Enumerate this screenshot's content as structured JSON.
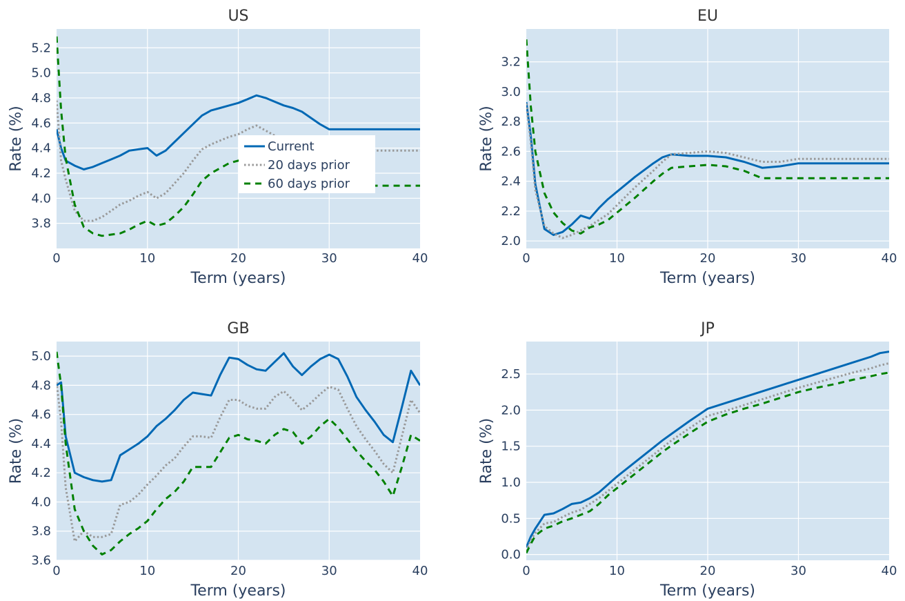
{
  "chart_data": [
    {
      "type": "line",
      "title": "US",
      "xlabel": "Term (years)",
      "ylabel": "Rate (%)",
      "xlim": [
        0,
        40
      ],
      "ylim": [
        3.6,
        5.35
      ],
      "xticks": [
        0,
        10,
        20,
        30,
        40
      ],
      "yticks": [
        3.8,
        4.0,
        4.2,
        4.4,
        4.6,
        4.8,
        5.0,
        5.2
      ],
      "ytick_format": 1,
      "grid": true,
      "legend": true,
      "legend_position": "center",
      "series": [
        {
          "name": "Current",
          "x": [
            0,
            0.5,
            1,
            2,
            3,
            4,
            5,
            6,
            7,
            8,
            9,
            10,
            11,
            12,
            13,
            14,
            15,
            16,
            17,
            18,
            19,
            20,
            21,
            22,
            23,
            24,
            25,
            26,
            27,
            28,
            29,
            30,
            35,
            40
          ],
          "y": [
            4.55,
            4.4,
            4.3,
            4.26,
            4.23,
            4.25,
            4.28,
            4.31,
            4.34,
            4.38,
            4.39,
            4.4,
            4.34,
            4.38,
            4.45,
            4.52,
            4.59,
            4.66,
            4.7,
            4.72,
            4.74,
            4.76,
            4.79,
            4.82,
            4.8,
            4.77,
            4.74,
            4.72,
            4.69,
            4.64,
            4.59,
            4.55,
            4.55,
            4.55
          ]
        },
        {
          "name": "20 days prior",
          "x": [
            0,
            0.5,
            1,
            2,
            3,
            4,
            5,
            6,
            7,
            8,
            9,
            10,
            11,
            12,
            13,
            14,
            15,
            16,
            17,
            18,
            19,
            20,
            21,
            22,
            23,
            24,
            25,
            26,
            27,
            28,
            30,
            35,
            40
          ],
          "y": [
            4.78,
            4.3,
            4.15,
            3.9,
            3.82,
            3.82,
            3.85,
            3.9,
            3.95,
            3.98,
            4.02,
            4.05,
            4.0,
            4.04,
            4.12,
            4.2,
            4.3,
            4.39,
            4.43,
            4.46,
            4.49,
            4.51,
            4.55,
            4.58,
            4.54,
            4.5,
            4.47,
            4.45,
            4.43,
            4.41,
            4.38,
            4.38,
            4.38
          ]
        },
        {
          "name": "60 days prior",
          "x": [
            0,
            0.5,
            1,
            2,
            3,
            4,
            5,
            6,
            7,
            8,
            9,
            10,
            11,
            12,
            13,
            14,
            15,
            16,
            17,
            18,
            19,
            20,
            21,
            22,
            23,
            24,
            25,
            26,
            27,
            28,
            30,
            35,
            40
          ],
          "y": [
            5.29,
            4.7,
            4.32,
            3.95,
            3.77,
            3.72,
            3.7,
            3.71,
            3.72,
            3.75,
            3.79,
            3.82,
            3.78,
            3.8,
            3.86,
            3.93,
            4.03,
            4.14,
            4.2,
            4.24,
            4.28,
            4.3,
            4.28,
            4.24,
            4.2,
            4.17,
            4.14,
            4.12,
            4.11,
            4.1,
            4.1,
            4.1,
            4.1
          ]
        }
      ]
    },
    {
      "type": "line",
      "title": "EU",
      "xlabel": "Term (years)",
      "ylabel": "Rate (%)",
      "xlim": [
        0,
        40
      ],
      "ylim": [
        1.95,
        3.42
      ],
      "xticks": [
        0,
        10,
        20,
        30,
        40
      ],
      "yticks": [
        2.0,
        2.2,
        2.4,
        2.6,
        2.8,
        3.0,
        3.2
      ],
      "ytick_format": 1,
      "grid": true,
      "legend": false,
      "series": [
        {
          "name": "Current",
          "x": [
            0,
            0.5,
            1,
            2,
            3,
            4,
            5,
            6,
            7,
            8,
            9,
            10,
            12,
            14,
            15,
            16,
            18,
            20,
            22,
            24,
            26,
            28,
            30,
            35,
            40
          ],
          "y": [
            2.93,
            2.7,
            2.38,
            2.08,
            2.04,
            2.06,
            2.11,
            2.17,
            2.15,
            2.22,
            2.28,
            2.33,
            2.43,
            2.52,
            2.56,
            2.58,
            2.57,
            2.57,
            2.56,
            2.53,
            2.49,
            2.5,
            2.52,
            2.52,
            2.52
          ]
        },
        {
          "name": "20 days prior",
          "x": [
            0,
            0.5,
            1,
            2,
            3,
            4,
            5,
            6,
            7,
            8,
            9,
            10,
            12,
            14,
            15,
            16,
            18,
            20,
            22,
            24,
            26,
            28,
            30,
            35,
            40
          ],
          "y": [
            2.92,
            2.66,
            2.34,
            2.1,
            2.05,
            2.02,
            2.04,
            2.07,
            2.1,
            2.14,
            2.18,
            2.24,
            2.36,
            2.47,
            2.53,
            2.58,
            2.59,
            2.6,
            2.59,
            2.56,
            2.53,
            2.53,
            2.55,
            2.55,
            2.55
          ]
        },
        {
          "name": "60 days prior",
          "x": [
            0,
            0.5,
            1,
            2,
            3,
            4,
            5,
            6,
            7,
            8,
            9,
            10,
            12,
            14,
            15,
            16,
            18,
            20,
            22,
            24,
            26,
            28,
            30,
            35,
            40
          ],
          "y": [
            3.35,
            2.9,
            2.6,
            2.32,
            2.19,
            2.12,
            2.07,
            2.05,
            2.09,
            2.11,
            2.14,
            2.19,
            2.29,
            2.4,
            2.45,
            2.49,
            2.5,
            2.51,
            2.5,
            2.47,
            2.42,
            2.42,
            2.42,
            2.42,
            2.42
          ]
        }
      ]
    },
    {
      "type": "line",
      "title": "GB",
      "xlabel": "Term (years)",
      "ylabel": "Rate (%)",
      "xlim": [
        0,
        40
      ],
      "ylim": [
        3.6,
        5.1
      ],
      "xticks": [
        0,
        10,
        20,
        30,
        40
      ],
      "yticks": [
        3.6,
        3.8,
        4.0,
        4.2,
        4.4,
        4.6,
        4.8,
        5.0
      ],
      "ytick_format": 1,
      "grid": true,
      "legend": false,
      "series": [
        {
          "name": "Current",
          "x": [
            0,
            0.5,
            1,
            2,
            3,
            4,
            5,
            6,
            7,
            8,
            9,
            10,
            11,
            12,
            13,
            14,
            15,
            16,
            17,
            18,
            19,
            20,
            21,
            22,
            23,
            24,
            25,
            26,
            27,
            28,
            29,
            30,
            31,
            32,
            33,
            34,
            35,
            36,
            37,
            38,
            39,
            40
          ],
          "y": [
            4.8,
            4.82,
            4.45,
            4.2,
            4.17,
            4.15,
            4.14,
            4.15,
            4.32,
            4.36,
            4.4,
            4.45,
            4.52,
            4.57,
            4.63,
            4.7,
            4.75,
            4.74,
            4.73,
            4.87,
            4.99,
            4.98,
            4.94,
            4.91,
            4.9,
            4.96,
            5.02,
            4.93,
            4.87,
            4.93,
            4.98,
            5.01,
            4.98,
            4.86,
            4.72,
            4.63,
            4.55,
            4.46,
            4.41,
            4.65,
            4.9,
            4.8
          ]
        },
        {
          "name": "20 days prior",
          "x": [
            0,
            0.5,
            1,
            2,
            3,
            4,
            5,
            6,
            7,
            8,
            9,
            10,
            11,
            12,
            13,
            14,
            15,
            16,
            17,
            18,
            19,
            20,
            21,
            22,
            23,
            24,
            25,
            26,
            27,
            28,
            29,
            30,
            31,
            32,
            33,
            34,
            35,
            36,
            37,
            38,
            39,
            40
          ],
          "y": [
            4.82,
            4.55,
            4.1,
            3.73,
            3.8,
            3.76,
            3.76,
            3.78,
            3.98,
            4.0,
            4.05,
            4.12,
            4.18,
            4.25,
            4.3,
            4.38,
            4.45,
            4.45,
            4.44,
            4.58,
            4.7,
            4.7,
            4.66,
            4.64,
            4.64,
            4.72,
            4.76,
            4.7,
            4.63,
            4.68,
            4.74,
            4.79,
            4.77,
            4.64,
            4.52,
            4.43,
            4.35,
            4.26,
            4.2,
            4.45,
            4.7,
            4.61
          ]
        },
        {
          "name": "60 days prior",
          "x": [
            0,
            0.5,
            1,
            2,
            3,
            4,
            5,
            6,
            7,
            8,
            9,
            10,
            11,
            12,
            13,
            14,
            15,
            16,
            17,
            18,
            19,
            20,
            21,
            22,
            23,
            24,
            25,
            26,
            27,
            28,
            29,
            30,
            31,
            32,
            33,
            34,
            35,
            36,
            37,
            38,
            39,
            40
          ],
          "y": [
            5.03,
            4.8,
            4.4,
            3.95,
            3.8,
            3.7,
            3.64,
            3.67,
            3.73,
            3.78,
            3.82,
            3.87,
            3.95,
            4.02,
            4.07,
            4.14,
            4.24,
            4.24,
            4.24,
            4.34,
            4.44,
            4.46,
            4.43,
            4.42,
            4.4,
            4.46,
            4.5,
            4.48,
            4.4,
            4.45,
            4.52,
            4.57,
            4.51,
            4.43,
            4.35,
            4.28,
            4.22,
            4.14,
            4.04,
            4.24,
            4.46,
            4.42
          ]
        }
      ]
    },
    {
      "type": "line",
      "title": "JP",
      "xlabel": "Term (years)",
      "ylabel": "Rate (%)",
      "xlim": [
        0,
        40
      ],
      "ylim": [
        -0.08,
        2.95
      ],
      "xticks": [
        0,
        10,
        20,
        30,
        40
      ],
      "yticks": [
        0.0,
        0.5,
        1.0,
        1.5,
        2.0,
        2.5
      ],
      "ytick_format": 1,
      "grid": true,
      "legend": false,
      "series": [
        {
          "name": "Current",
          "x": [
            0,
            0.5,
            1,
            2,
            3,
            4,
            5,
            6,
            7,
            8,
            9,
            10,
            12,
            14,
            15,
            16,
            18,
            20,
            22,
            24,
            26,
            28,
            30,
            32,
            34,
            36,
            38,
            39,
            40
          ],
          "y": [
            0.1,
            0.25,
            0.36,
            0.55,
            0.57,
            0.63,
            0.7,
            0.72,
            0.78,
            0.86,
            0.97,
            1.08,
            1.28,
            1.48,
            1.58,
            1.67,
            1.85,
            2.02,
            2.1,
            2.18,
            2.26,
            2.34,
            2.42,
            2.5,
            2.58,
            2.66,
            2.74,
            2.79,
            2.81
          ]
        },
        {
          "name": "20 days prior",
          "x": [
            0,
            0.5,
            1,
            2,
            3,
            4,
            5,
            6,
            7,
            8,
            9,
            10,
            12,
            14,
            15,
            16,
            18,
            20,
            22,
            24,
            26,
            28,
            30,
            32,
            34,
            36,
            38,
            39,
            40
          ],
          "y": [
            0.05,
            0.2,
            0.3,
            0.43,
            0.45,
            0.52,
            0.58,
            0.62,
            0.7,
            0.78,
            0.88,
            0.98,
            1.18,
            1.38,
            1.48,
            1.58,
            1.75,
            1.92,
            1.99,
            2.07,
            2.15,
            2.23,
            2.31,
            2.38,
            2.45,
            2.52,
            2.58,
            2.62,
            2.65
          ]
        },
        {
          "name": "60 days prior",
          "x": [
            0,
            0.5,
            1,
            2,
            3,
            4,
            5,
            6,
            7,
            8,
            9,
            10,
            12,
            14,
            15,
            16,
            18,
            20,
            22,
            24,
            26,
            28,
            30,
            32,
            34,
            36,
            38,
            39,
            40
          ],
          "y": [
            0.02,
            0.15,
            0.26,
            0.36,
            0.4,
            0.46,
            0.5,
            0.55,
            0.6,
            0.7,
            0.82,
            0.92,
            1.12,
            1.32,
            1.42,
            1.51,
            1.68,
            1.84,
            1.94,
            2.02,
            2.09,
            2.17,
            2.25,
            2.31,
            2.36,
            2.42,
            2.47,
            2.5,
            2.52
          ]
        }
      ]
    }
  ],
  "series_colors": [
    "#0068b4",
    "#999999",
    "#008000"
  ],
  "series_dash": [
    "solid",
    "dotted",
    "dashed"
  ]
}
